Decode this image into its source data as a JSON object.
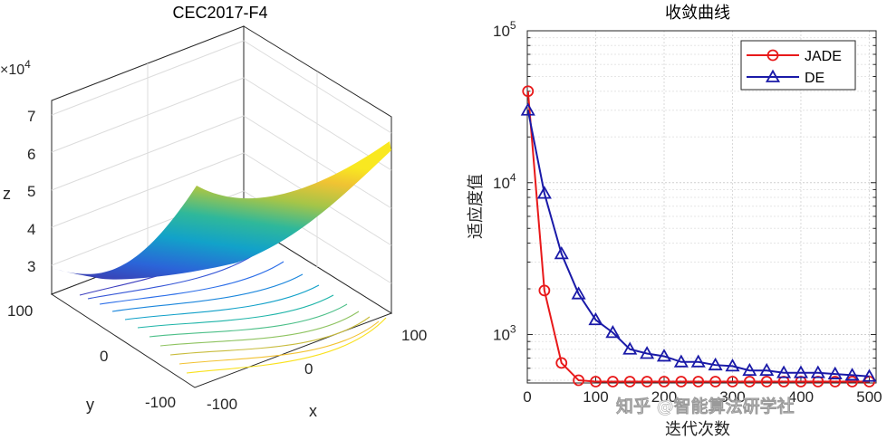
{
  "chart_data": [
    {
      "type": "surface3d",
      "title": "CEC2017-F4",
      "xlabel": "x",
      "ylabel": "y",
      "zlabel": "z",
      "z_exponent_label": "×10^4",
      "x_ticks": [
        "-100",
        "0",
        "100"
      ],
      "y_ticks": [
        "-100",
        "0",
        "100"
      ],
      "z_ticks": [
        "3",
        "4",
        "5",
        "6",
        "7"
      ],
      "xlim": [
        -100,
        100
      ],
      "ylim": [
        -100,
        100
      ],
      "zlim": [
        2.8,
        7.8
      ],
      "grid": true,
      "colormap": "parula"
    },
    {
      "type": "line",
      "title": "收敛曲线",
      "xlabel": "迭代次数",
      "ylabel": "适应度值",
      "yscale": "log",
      "xlim": [
        0,
        510
      ],
      "ylim": [
        480,
        100000
      ],
      "x_ticks": [
        "0",
        "100",
        "200",
        "300",
        "400",
        "500"
      ],
      "y_ticks": [
        {
          "value": 1000,
          "base": "10",
          "exp": "3"
        },
        {
          "value": 10000,
          "base": "10",
          "exp": "4"
        },
        {
          "value": 100000,
          "base": "10",
          "exp": "5"
        }
      ],
      "grid": true,
      "legend_position": "top-right",
      "x": [
        1,
        25,
        50,
        75,
        100,
        125,
        150,
        175,
        200,
        225,
        250,
        275,
        300,
        325,
        350,
        375,
        400,
        425,
        450,
        475,
        500
      ],
      "series": [
        {
          "name": "JADE",
          "color": "#e8191a",
          "marker": "circle",
          "values": [
            40000,
            1950,
            650,
            500,
            490,
            490,
            490,
            490,
            490,
            490,
            490,
            490,
            490,
            490,
            490,
            490,
            490,
            490,
            490,
            490,
            490
          ]
        },
        {
          "name": "DE",
          "color": "#1a1aa8",
          "marker": "triangle",
          "values": [
            30000,
            8500,
            3400,
            1850,
            1250,
            1030,
            800,
            750,
            720,
            660,
            660,
            630,
            620,
            580,
            580,
            560,
            560,
            560,
            550,
            540,
            530
          ]
        }
      ]
    }
  ],
  "watermark": {
    "text": "知乎 @智能算法研学社"
  }
}
